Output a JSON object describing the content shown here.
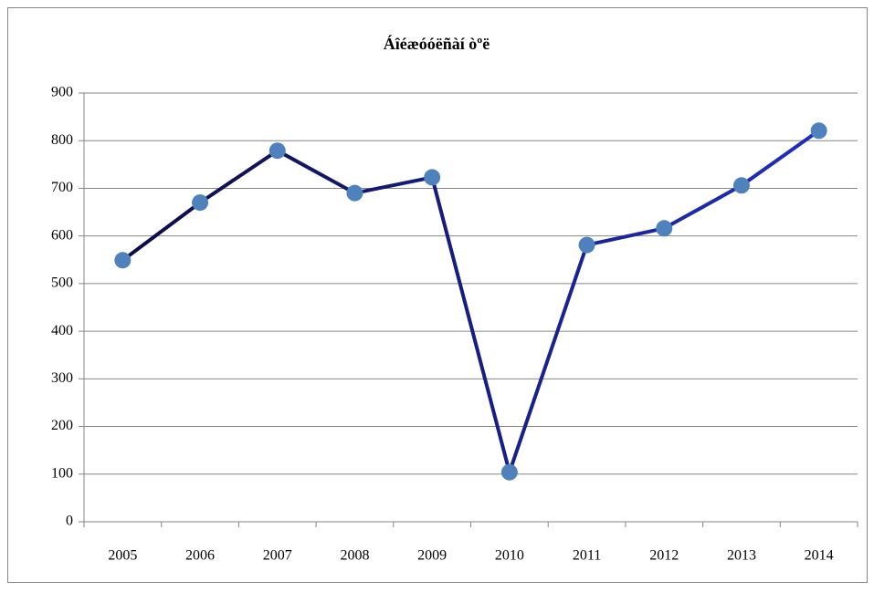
{
  "chart_data": {
    "type": "line",
    "title": "Áîéæóóëñàí òºë",
    "categories": [
      "2005",
      "2006",
      "2007",
      "2008",
      "2009",
      "2010",
      "2011",
      "2012",
      "2013",
      "2014"
    ],
    "series": [
      {
        "values": [
          549,
          670,
          779,
          690,
          723,
          104,
          581,
          616,
          706,
          821
        ],
        "color": "#4f81bd",
        "line_gradient": [
          "#0b0b3d",
          "#2030c8"
        ]
      }
    ],
    "ylim": [
      0,
      900
    ],
    "yticks": [
      0,
      100,
      200,
      300,
      400,
      500,
      600,
      700,
      800,
      900
    ],
    "grid": true,
    "grid_color": "#868686"
  }
}
